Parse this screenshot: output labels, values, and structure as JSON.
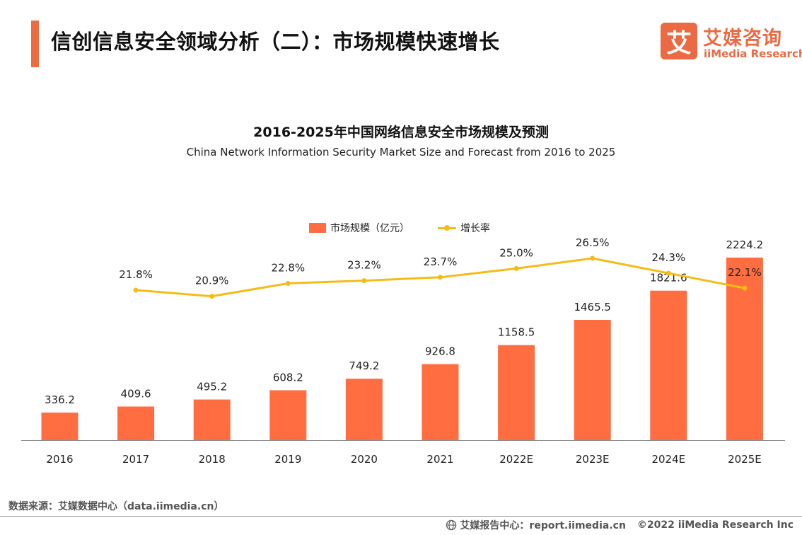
{
  "header": {
    "title": "信创信息安全领域分析（二）：市场规模快速增长"
  },
  "brand": {
    "logo_mark": "艾",
    "name_cn": "艾媒咨询",
    "name_en": "iiMedia Research",
    "color": "#ec6a43"
  },
  "chart_data": {
    "type": "bar",
    "title": "2016-2025年中国网络信息安全市场规模及预测",
    "subtitle": "China Network Information Security Market Size and Forecast from 2016 to 2025",
    "categories": [
      "2016",
      "2017",
      "2018",
      "2019",
      "2020",
      "2021",
      "2022E",
      "2023E",
      "2024E",
      "2025E"
    ],
    "series": [
      {
        "name": "市场规模（亿元）",
        "type": "bar",
        "color": "#ff6d40",
        "values": [
          336.2,
          409.6,
          495.2,
          608.2,
          749.2,
          926.8,
          1158.5,
          1465.5,
          1821.6,
          2224.2
        ],
        "labels": [
          "336.2",
          "409.6",
          "495.2",
          "608.2",
          "749.2",
          "926.8",
          "1158.5",
          "1465.5",
          "1821.6",
          "2224.2"
        ]
      },
      {
        "name": "增长率",
        "type": "line",
        "color": "#f2bd17",
        "values": [
          null,
          21.8,
          20.9,
          22.8,
          23.2,
          23.7,
          25.0,
          26.5,
          24.3,
          22.1
        ],
        "labels": [
          "",
          "21.8%",
          "20.9%",
          "22.8%",
          "23.2%",
          "23.7%",
          "25.0%",
          "26.5%",
          "24.3%",
          "22.1%"
        ]
      }
    ],
    "legend_position": "top-center",
    "grid": false,
    "show_y_axis": false
  },
  "footer": {
    "source": "数据来源：艾媒数据中心（data.iimedia.cn）",
    "report_center": "艾媒报告中心：report.iimedia.cn",
    "copyright": "©2022  iiMedia Research  Inc"
  }
}
